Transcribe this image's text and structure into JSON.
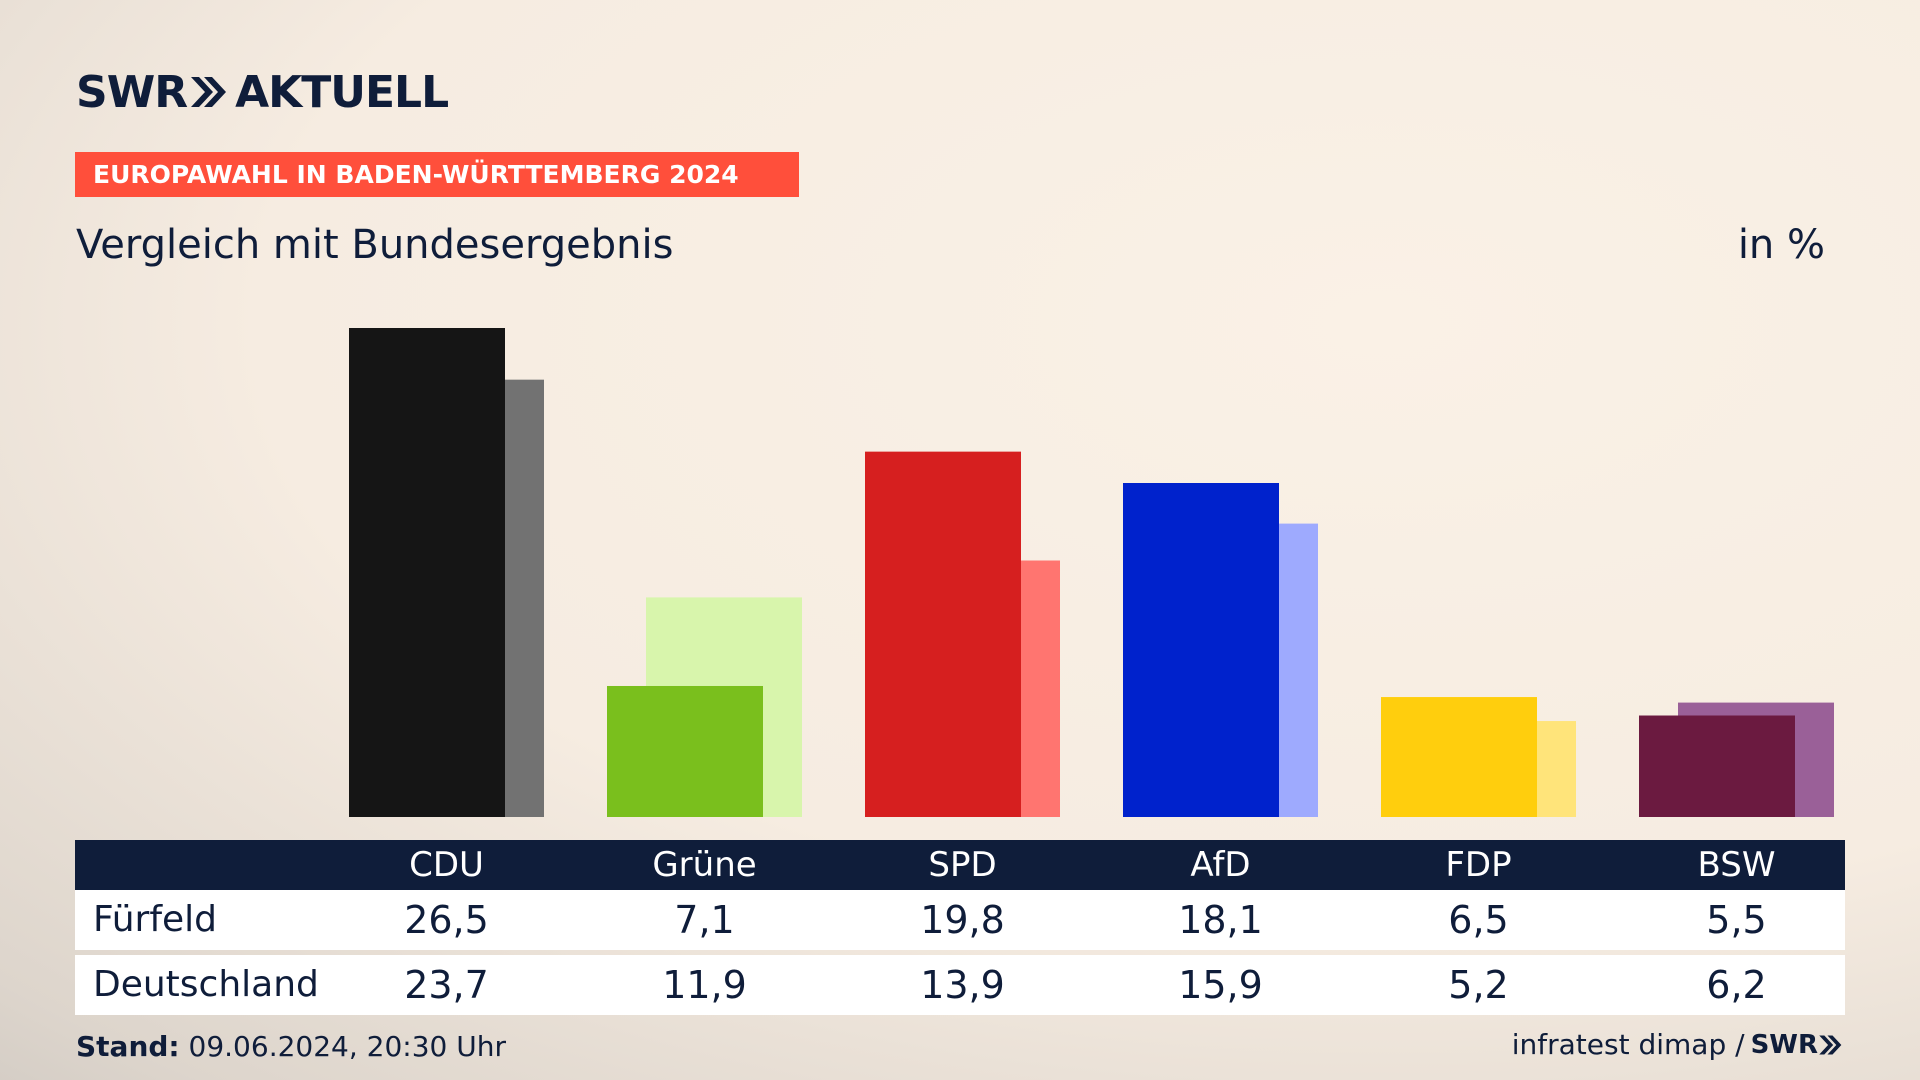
{
  "header": {
    "logo_brand": "SWR",
    "logo_product": "AKTUELL",
    "banner": "EUROPAWAHL IN BADEN-WÜRTTEMBERG 2024",
    "subtitle": "Vergleich mit Bundesergebnis",
    "unit": "in %"
  },
  "table": {
    "rows": [
      {
        "label": "Fürfeld",
        "values": [
          "26,5",
          "7,1",
          "19,8",
          "18,1",
          "6,5",
          "5,5"
        ]
      },
      {
        "label": "Deutschland",
        "values": [
          "23,7",
          "11,9",
          "13,9",
          "15,9",
          "5,2",
          "6,2"
        ]
      }
    ]
  },
  "footer": {
    "stand_label": "Stand:",
    "stand_value": "09.06.2024, 20:30 Uhr",
    "source": "infratest dimap /",
    "source_logo": "SWR"
  },
  "chart_data": {
    "type": "bar",
    "categories": [
      "CDU",
      "Grüne",
      "SPD",
      "AfD",
      "FDP",
      "BSW"
    ],
    "series": [
      {
        "name": "Fürfeld",
        "values": [
          26.5,
          7.1,
          19.8,
          18.1,
          6.5,
          5.5
        ]
      },
      {
        "name": "Deutschland",
        "values": [
          23.7,
          11.9,
          13.9,
          15.9,
          5.2,
          6.2
        ]
      }
    ],
    "colors": {
      "primary": [
        "#151515",
        "#7abf1d",
        "#d61f1f",
        "#0022cc",
        "#ffce0d",
        "#6b1a40"
      ],
      "secondary": [
        "#727272",
        "#d8f5ac",
        "#ff7570",
        "#9eaafe",
        "#ffe47a",
        "#9a6098"
      ]
    },
    "ylim": [
      0,
      26.5
    ],
    "grid": false,
    "legend": "table"
  }
}
